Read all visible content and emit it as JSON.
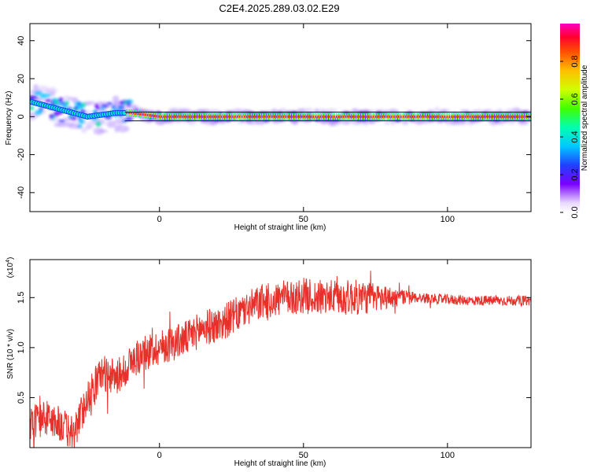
{
  "title": "C2E4.2025.289.03.02.E29",
  "colors": {
    "snr_line": "#e8302a",
    "axis": "#000000",
    "track_band": "#ff2a2a",
    "track_edge": "#00ff88"
  },
  "chart_data": [
    {
      "type": "heatmap",
      "xlabel": "Height of straight line (km)",
      "ylabel": "Frequency (Hz)",
      "xlim": [
        -45,
        129
      ],
      "ylim": [
        -50,
        49
      ],
      "xticks": [
        0,
        50,
        100
      ],
      "yticks": [
        -40,
        -20,
        0,
        20,
        40
      ],
      "colorbar": {
        "label": "Normalized spectral amplitude",
        "range": [
          0,
          1
        ],
        "ticks": [
          0.0,
          0.2,
          0.4,
          0.6,
          0.8
        ],
        "tick_labels": [
          "0.0",
          "0.2",
          "0.4",
          "0.6",
          "0.8"
        ],
        "colormap": "rainbow-white"
      },
      "dominant_track": {
        "description_points": [
          [
            -45,
            8
          ],
          [
            -40,
            6
          ],
          [
            -35,
            4
          ],
          [
            -30,
            2
          ],
          [
            -25,
            0
          ],
          [
            -20,
            1
          ],
          [
            -15,
            2
          ],
          [
            -10,
            2
          ],
          [
            0,
            0
          ],
          [
            20,
            0
          ],
          [
            50,
            0
          ],
          [
            100,
            0
          ],
          [
            129,
            0
          ]
        ]
      }
    },
    {
      "type": "line",
      "xlabel": "Height of straight line (km)",
      "ylabel": "SNR (10 * v/v)",
      "multiplier": "(x10",
      "multiplier_exp": "4",
      "multiplier_close": ")",
      "xlim": [
        -45,
        129
      ],
      "ylim": [
        0.0,
        1.88
      ],
      "xticks": [
        0,
        50,
        100
      ],
      "yticks": [
        0.5,
        1.0,
        1.5
      ],
      "ytick_labels": [
        "0.5",
        "1.0",
        "1.5"
      ],
      "trend_points": [
        [
          -45,
          0.25
        ],
        [
          -40,
          0.3
        ],
        [
          -35,
          0.25
        ],
        [
          -30,
          0.12
        ],
        [
          -25,
          0.5
        ],
        [
          -20,
          0.75
        ],
        [
          -15,
          0.7
        ],
        [
          -10,
          0.85
        ],
        [
          -5,
          0.95
        ],
        [
          0,
          1.0
        ],
        [
          5,
          1.05
        ],
        [
          10,
          1.1
        ],
        [
          15,
          1.2
        ],
        [
          20,
          1.22
        ],
        [
          25,
          1.3
        ],
        [
          30,
          1.38
        ],
        [
          35,
          1.45
        ],
        [
          40,
          1.48
        ],
        [
          45,
          1.5
        ],
        [
          50,
          1.52
        ],
        [
          55,
          1.5
        ],
        [
          60,
          1.5
        ],
        [
          70,
          1.5
        ],
        [
          80,
          1.5
        ],
        [
          90,
          1.5
        ],
        [
          100,
          1.48
        ],
        [
          110,
          1.47
        ],
        [
          120,
          1.47
        ],
        [
          129,
          1.47
        ]
      ],
      "noise_amplitude": 0.18,
      "noise_taper_start": 70,
      "noise_tail_amplitude": 0.05
    }
  ]
}
